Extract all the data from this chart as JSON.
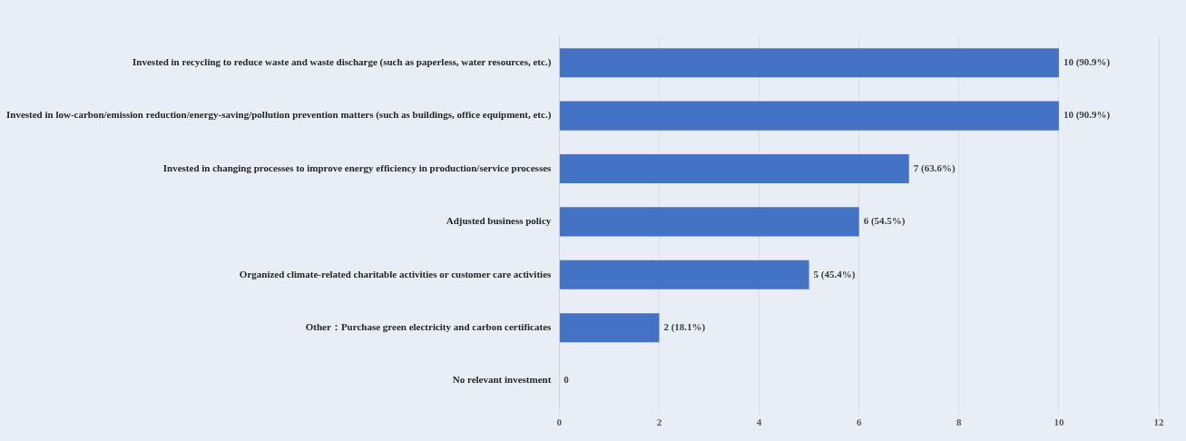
{
  "chart_data": {
    "type": "bar",
    "orientation": "horizontal",
    "categories": [
      "Invested in recycling to reduce waste and waste discharge (such as paperless, water resources, etc.)",
      "Invested in low-carbon/emission reduction/energy-saving/pollution prevention matters (such as buildings, office equipment, etc.)",
      "Invested in changing processes to improve energy efficiency in production/service processes",
      "Adjusted business policy",
      "Organized climate-related charitable activities or customer care activities",
      "Other：Purchase green electricity and carbon certificates",
      "No relevant investment"
    ],
    "values": [
      10,
      10,
      7,
      6,
      5,
      2,
      0
    ],
    "value_labels": [
      "10 (90.9%)",
      "10 (90.9%)",
      "7 (63.6%)",
      "6 (54.5%)",
      "5 (45.4%)",
      "2 (18.1%)",
      "0"
    ],
    "color": "#4472c4",
    "xlim": [
      0,
      12
    ],
    "xticks": [
      0,
      2,
      4,
      6,
      8,
      10,
      12
    ],
    "grid": "x",
    "legend": false
  }
}
